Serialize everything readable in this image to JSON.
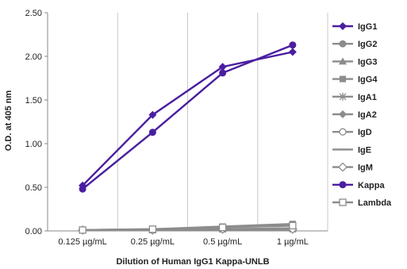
{
  "chart_data": {
    "type": "line",
    "title": "",
    "xlabel": "Dilution of Human IgG1 Kappa-UNLB",
    "ylabel": "O.D. at 405 nm",
    "categories": [
      "0.125 µg/mL",
      "0.25 µg/mL",
      "0.5 µg/mL",
      "1 µg/mL"
    ],
    "y_ticks": [
      "0.00",
      "0.50",
      "1.00",
      "1.50",
      "2.00",
      "2.50"
    ],
    "ylim": [
      0,
      2.5
    ],
    "grid": "vertical",
    "legend_position": "right",
    "series": [
      {
        "name": "IgG1",
        "values": [
          0.52,
          1.33,
          1.88,
          2.05
        ],
        "color": "#4a1ea0",
        "marker": "diamond"
      },
      {
        "name": "IgG2",
        "values": [
          0.01,
          0.01,
          0.02,
          0.03
        ],
        "color": "#8c8c8c",
        "marker": "circle"
      },
      {
        "name": "IgG3",
        "values": [
          0.01,
          0.01,
          0.02,
          0.03
        ],
        "color": "#8c8c8c",
        "marker": "triangle"
      },
      {
        "name": "IgG4",
        "values": [
          0.01,
          0.02,
          0.05,
          0.08
        ],
        "color": "#8c8c8c",
        "marker": "square"
      },
      {
        "name": "IgA1",
        "values": [
          0.01,
          0.01,
          0.02,
          0.02
        ],
        "color": "#8c8c8c",
        "marker": "asterisk"
      },
      {
        "name": "IgA2",
        "values": [
          0.01,
          0.01,
          0.02,
          0.02
        ],
        "color": "#8c8c8c",
        "marker": "diamond"
      },
      {
        "name": "IgD",
        "values": [
          0.01,
          0.01,
          0.02,
          0.02
        ],
        "color": "#8c8c8c",
        "marker": "circle-open"
      },
      {
        "name": "IgE",
        "values": [
          0.01,
          0.01,
          0.01,
          0.01
        ],
        "color": "#8c8c8c",
        "marker": "dash"
      },
      {
        "name": "IgM",
        "values": [
          0.01,
          0.01,
          0.02,
          0.02
        ],
        "color": "#8c8c8c",
        "marker": "diamond-open"
      },
      {
        "name": "Kappa",
        "values": [
          0.48,
          1.13,
          1.81,
          2.13
        ],
        "color": "#4a1ea0",
        "marker": "circle"
      },
      {
        "name": "Lambda",
        "values": [
          0.01,
          0.02,
          0.04,
          0.06
        ],
        "color": "#8c8c8c",
        "marker": "square-open"
      }
    ]
  }
}
